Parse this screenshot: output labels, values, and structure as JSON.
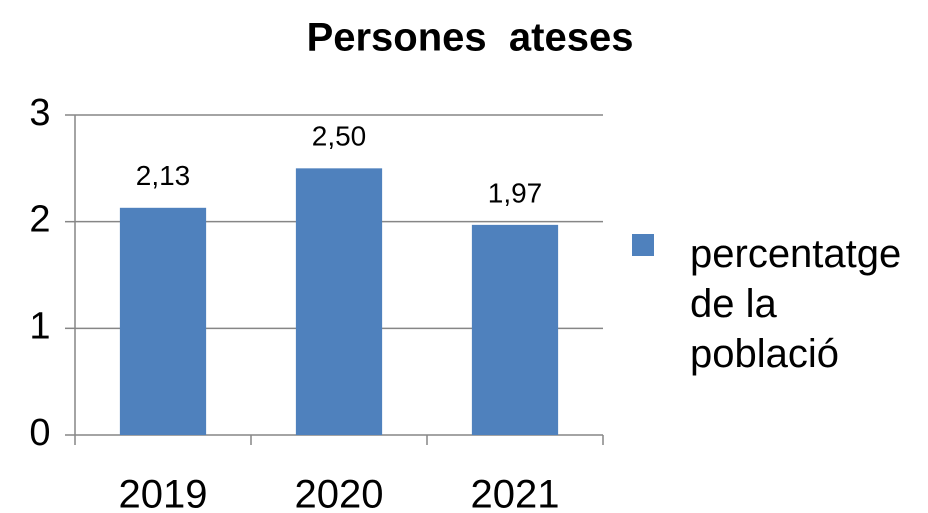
{
  "chart_data": {
    "type": "bar",
    "title": "Persones  ateses",
    "categories": [
      "2019",
      "2020",
      "2021"
    ],
    "series": [
      {
        "name": "percentatge de la població",
        "color": "#4f81bd",
        "values": [
          2.13,
          2.5,
          1.97
        ],
        "value_labels": [
          "2,13",
          "2,50",
          "1,97"
        ]
      }
    ],
    "ylim": [
      0,
      3
    ],
    "yticks": [
      0,
      1,
      2,
      3
    ],
    "grid": true,
    "legend": "right"
  }
}
